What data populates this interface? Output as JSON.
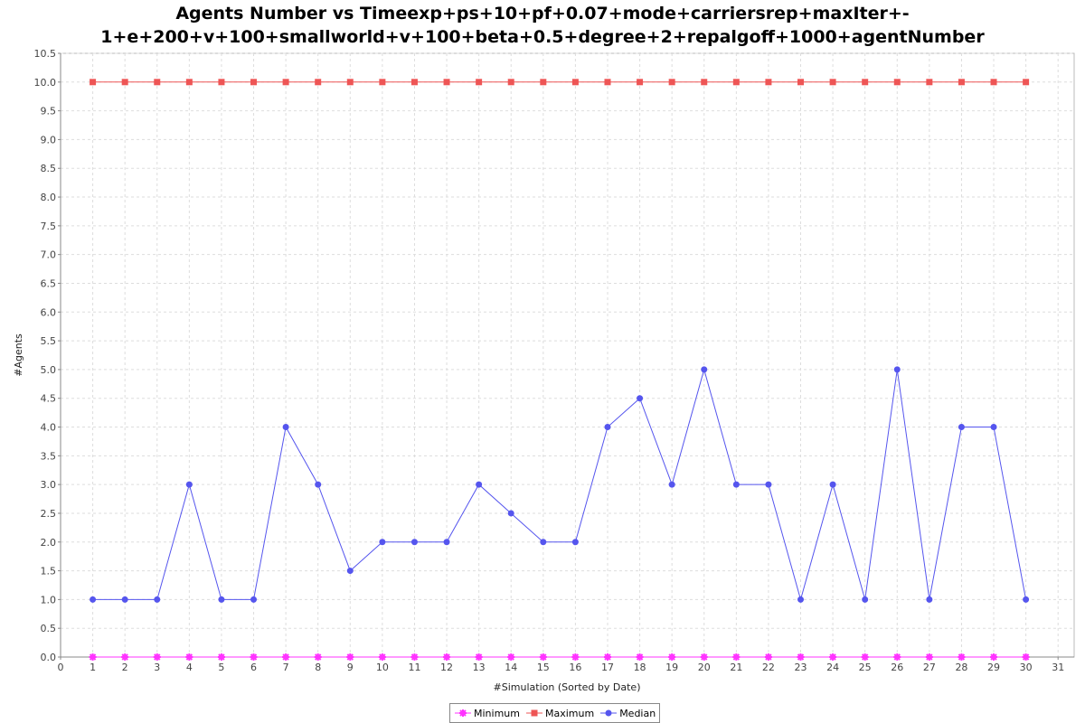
{
  "chart_data": {
    "type": "line",
    "title_lines": [
      "Agents Number vs Timeexp+ps+10+pf+0.07+mode+carriersrep+maxIter+-",
      "1+e+200+v+100+smallworld+v+100+beta+0.5+degree+2+repalgoff+1000+agentNumber"
    ],
    "xlabel": "#Simulation (Sorted by Date)",
    "ylabel": "#Agents",
    "xlim": [
      0,
      31.5
    ],
    "ylim": [
      0,
      10.5
    ],
    "x_ticks": [
      0,
      1,
      2,
      3,
      4,
      5,
      6,
      7,
      8,
      9,
      10,
      11,
      12,
      13,
      14,
      15,
      16,
      17,
      18,
      19,
      20,
      21,
      22,
      23,
      24,
      25,
      26,
      27,
      28,
      29,
      30,
      31
    ],
    "y_ticks": [
      0.0,
      0.5,
      1.0,
      1.5,
      2.0,
      2.5,
      3.0,
      3.5,
      4.0,
      4.5,
      5.0,
      5.5,
      6.0,
      6.5,
      7.0,
      7.5,
      8.0,
      8.5,
      9.0,
      9.5,
      10.0,
      10.5
    ],
    "grid": true,
    "legend_position": "bottom",
    "x": [
      1,
      2,
      3,
      4,
      5,
      6,
      7,
      8,
      9,
      10,
      11,
      12,
      13,
      14,
      15,
      16,
      17,
      18,
      19,
      20,
      21,
      22,
      23,
      24,
      25,
      26,
      27,
      28,
      29,
      30
    ],
    "series": [
      {
        "name": "Minimum",
        "color": "#ff33ff",
        "marker": "asterisk",
        "values": [
          0,
          0,
          0,
          0,
          0,
          0,
          0,
          0,
          0,
          0,
          0,
          0,
          0,
          0,
          0,
          0,
          0,
          0,
          0,
          0,
          0,
          0,
          0,
          0,
          0,
          0,
          0,
          0,
          0,
          0
        ]
      },
      {
        "name": "Maximum",
        "color": "#ee5555",
        "marker": "square",
        "values": [
          10,
          10,
          10,
          10,
          10,
          10,
          10,
          10,
          10,
          10,
          10,
          10,
          10,
          10,
          10,
          10,
          10,
          10,
          10,
          10,
          10,
          10,
          10,
          10,
          10,
          10,
          10,
          10,
          10,
          10
        ]
      },
      {
        "name": "Median",
        "color": "#5555ee",
        "marker": "circle",
        "values": [
          1,
          1,
          1,
          3,
          1,
          1,
          4,
          3,
          1.5,
          2,
          2,
          2,
          3,
          2.5,
          2,
          2,
          4,
          4.5,
          3,
          5,
          3,
          3,
          1,
          3,
          1,
          5,
          1,
          4,
          4,
          1
        ]
      }
    ]
  }
}
